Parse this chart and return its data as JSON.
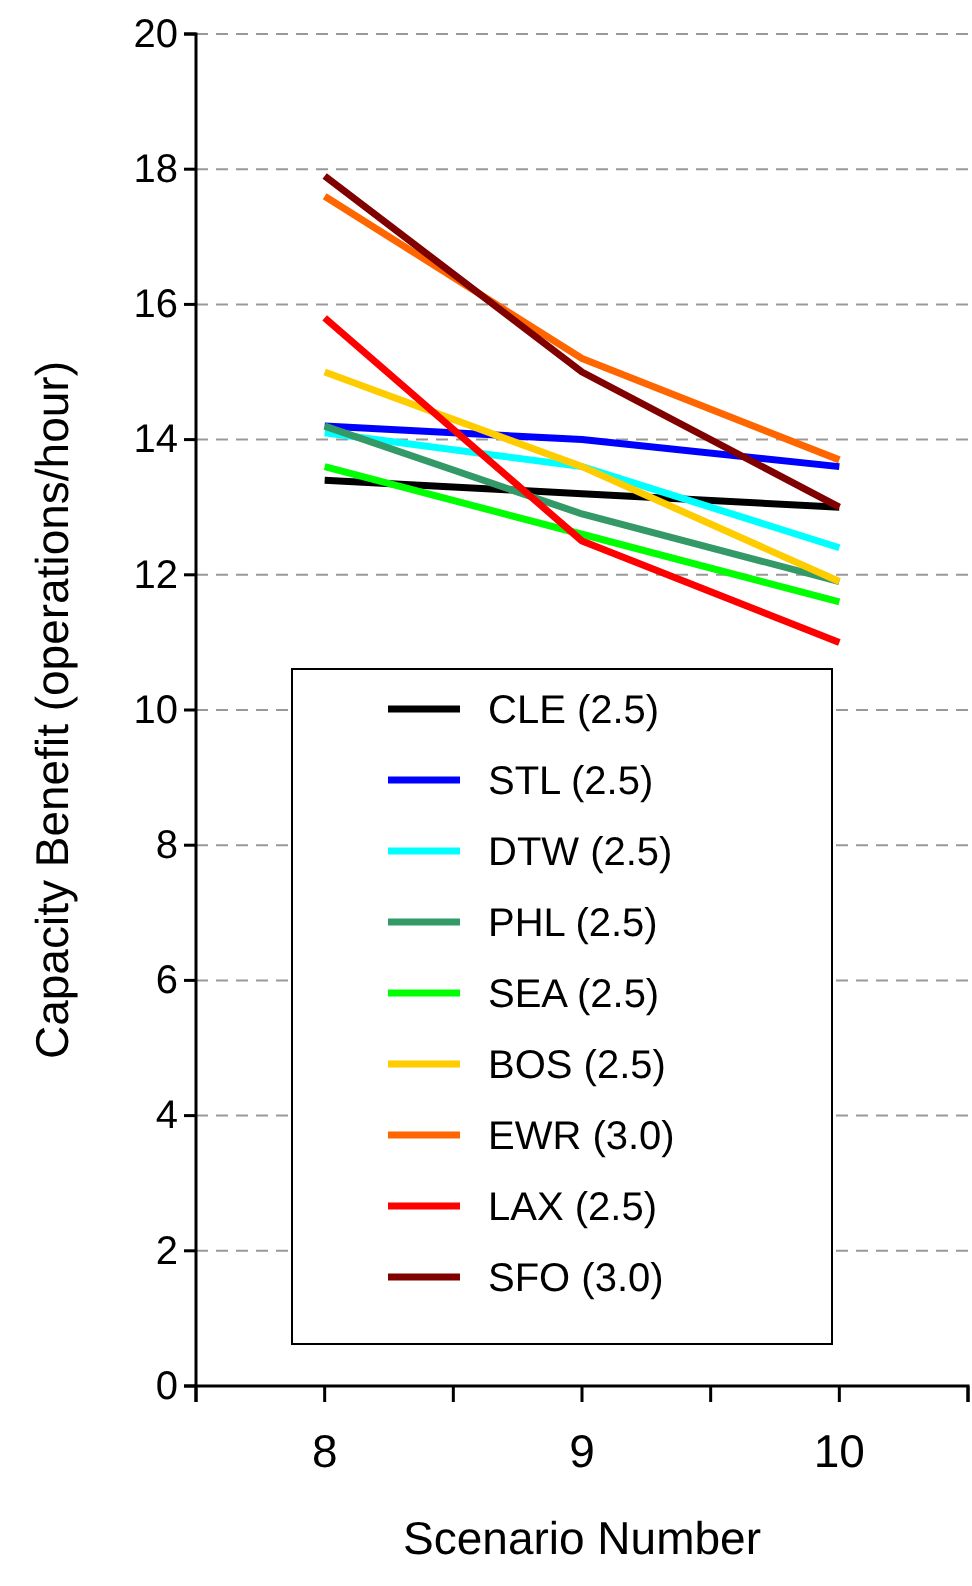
{
  "chart_data": {
    "type": "line",
    "xlabel": "Scenario Number",
    "ylabel": "Capacity Benefit (operations/hour)",
    "x": [
      8,
      9,
      10
    ],
    "xlim": [
      7.5,
      10.5
    ],
    "xticks": [
      {
        "value": 7.5,
        "label": null
      },
      8,
      {
        "value": 8.5,
        "label": null
      },
      9,
      {
        "value": 9.5,
        "label": null
      },
      10,
      {
        "value": 10.5,
        "label": null
      }
    ],
    "ylim": [
      0,
      20
    ],
    "yticks": [
      0,
      2,
      4,
      6,
      8,
      10,
      12,
      14,
      16,
      18,
      20
    ],
    "grid": "y",
    "legend": "bottom",
    "marker": "none",
    "line_style": "solid",
    "series": [
      {
        "name": "CLE (2.5)",
        "color": "#000000",
        "values": [
          13.4,
          13.2,
          13.0
        ]
      },
      {
        "name": "STL (2.5)",
        "color": "#0000ff",
        "values": [
          14.2,
          14.0,
          13.6
        ]
      },
      {
        "name": "DTW (2.5)",
        "color": "#00ffff",
        "values": [
          14.1,
          13.6,
          12.4
        ]
      },
      {
        "name": "PHL (2.5)",
        "color": "#339966",
        "values": [
          14.2,
          12.9,
          11.9
        ]
      },
      {
        "name": "SEA (2.5)",
        "color": "#00ff00",
        "values": [
          13.6,
          12.6,
          11.6
        ]
      },
      {
        "name": "BOS (2.5)",
        "color": "#ffcc00",
        "values": [
          15.0,
          13.6,
          11.9
        ]
      },
      {
        "name": "EWR (3.0)",
        "color": "#ff6600",
        "values": [
          17.6,
          15.2,
          13.7
        ]
      },
      {
        "name": "LAX (2.5)",
        "color": "#ff0000",
        "values": [
          15.8,
          12.5,
          11.0
        ]
      },
      {
        "name": "SFO (3.0)",
        "color": "#800000",
        "values": [
          17.9,
          15.0,
          13.0
        ]
      }
    ]
  }
}
